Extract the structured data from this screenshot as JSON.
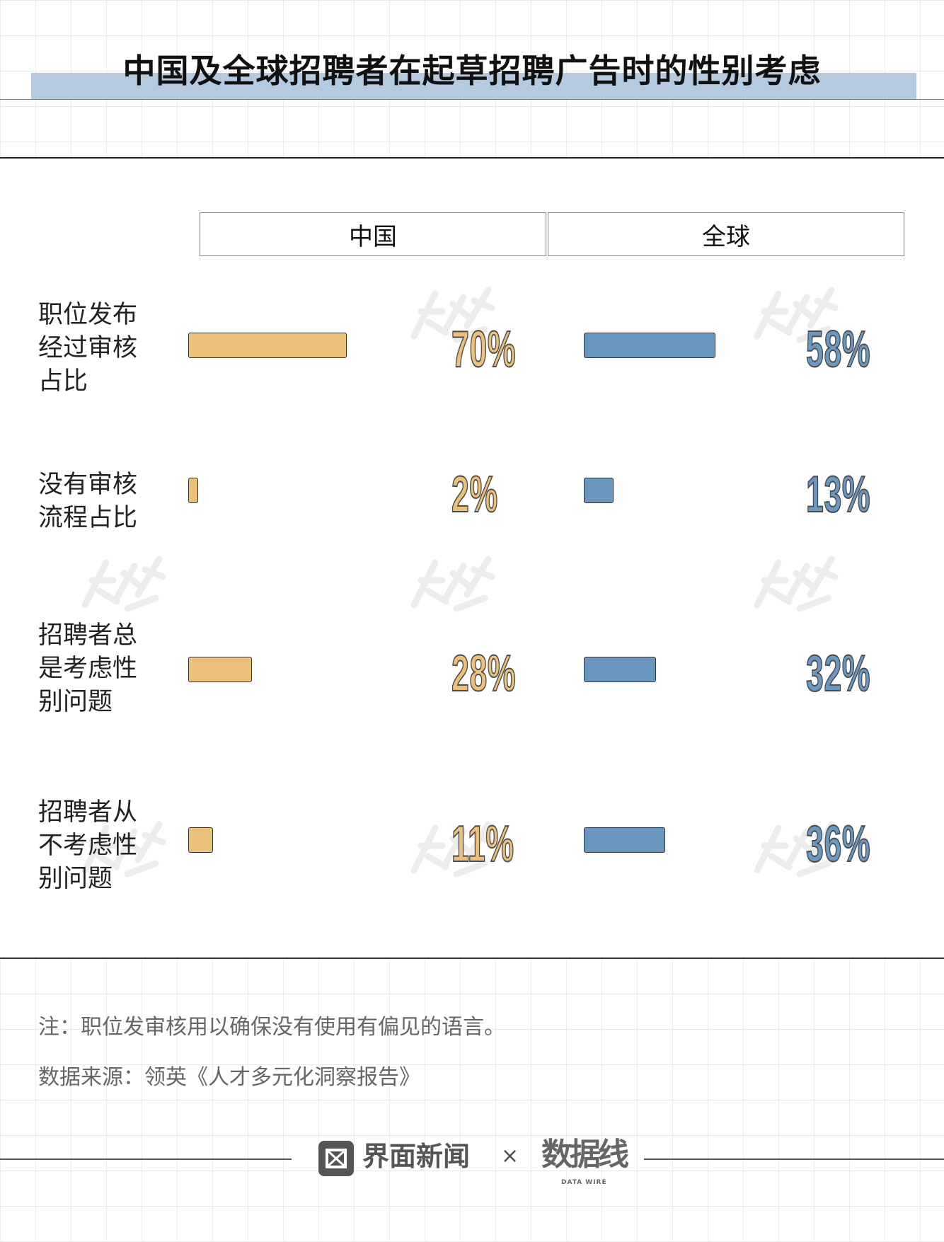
{
  "title": "中国及全球招聘者在起草招聘广告时的性别考虑",
  "chart_data": {
    "type": "bar",
    "title": "中国及全球招聘者在起草招聘广告时的性别考虑",
    "categories": [
      "职位发布经过审核占比",
      "没有审核流程占比",
      "招聘者总是考虑性别问题",
      "招聘者从不考虑性别问题"
    ],
    "series": [
      {
        "name": "中国",
        "values": [
          70,
          2,
          28,
          11
        ],
        "labels": [
          "70%",
          "2%",
          "28%",
          "11%"
        ],
        "color": "#ebc17a"
      },
      {
        "name": "全球",
        "values": [
          58,
          13,
          32,
          36
        ],
        "labels": [
          "58%",
          "13%",
          "32%",
          "36%"
        ],
        "color": "#6b98c0"
      }
    ],
    "unit": "%"
  },
  "row_labels": [
    [
      "职位发布",
      "经过审核",
      "占比"
    ],
    [
      "没有审核",
      "流程占比"
    ],
    [
      "招聘者总",
      "是考虑性",
      "别问题"
    ],
    [
      "招聘者从",
      "不考虑性",
      "别问题"
    ]
  ],
  "note": "注：职位发审核用以确保没有使用有偏见的语言。",
  "source": "数据来源：领英《人才多元化洞察报告》",
  "footer": {
    "brand1": "界面新闻",
    "times": "×",
    "brand2": "数据线",
    "brand2_sub": "DATA WIRE"
  }
}
